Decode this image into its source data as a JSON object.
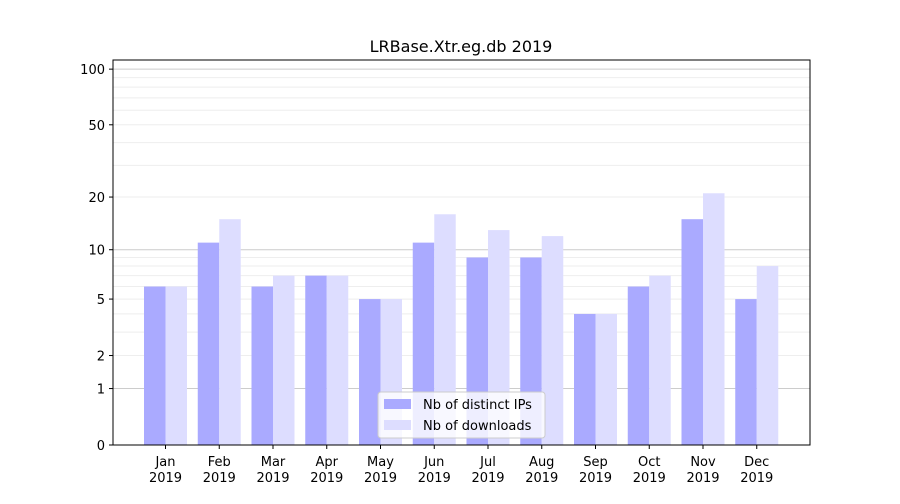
{
  "chart_data": {
    "type": "bar",
    "title": "LRBase.Xtr.eg.db 2019",
    "xlabel": "",
    "ylabel": "",
    "yscale": "log10(1+y)",
    "ylim": [
      0,
      112
    ],
    "yticks": [
      0,
      1,
      2,
      5,
      10,
      20,
      50,
      100
    ],
    "categories": [
      [
        "Jan",
        "2019"
      ],
      [
        "Feb",
        "2019"
      ],
      [
        "Mar",
        "2019"
      ],
      [
        "Apr",
        "2019"
      ],
      [
        "May",
        "2019"
      ],
      [
        "Jun",
        "2019"
      ],
      [
        "Jul",
        "2019"
      ],
      [
        "Aug",
        "2019"
      ],
      [
        "Sep",
        "2019"
      ],
      [
        "Oct",
        "2019"
      ],
      [
        "Nov",
        "2019"
      ],
      [
        "Dec",
        "2019"
      ]
    ],
    "series": [
      {
        "name": "Nb of distinct IPs",
        "color": "#aaaaff",
        "values": [
          6,
          11,
          6,
          7,
          5,
          11,
          9,
          9,
          4,
          6,
          15,
          5
        ]
      },
      {
        "name": "Nb of downloads",
        "color": "#ddddff",
        "values": [
          6,
          15,
          7,
          7,
          5,
          16,
          13,
          12,
          4,
          7,
          21,
          8
        ]
      }
    ],
    "grid": true,
    "legend_position": "bottom-center"
  }
}
